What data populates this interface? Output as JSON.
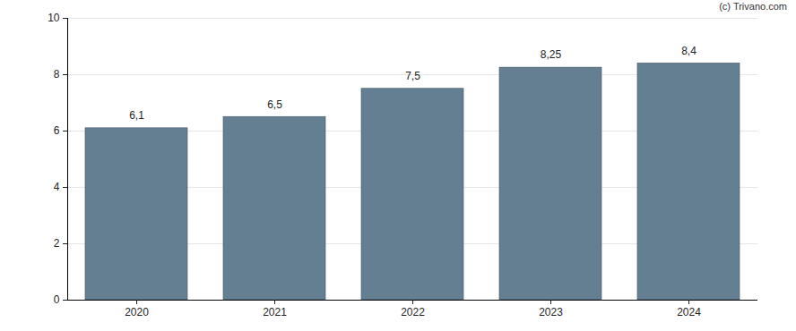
{
  "chart_data": {
    "type": "bar",
    "source": "(c) Trivano.com",
    "categories": [
      "2020",
      "2021",
      "2022",
      "2023",
      "2024"
    ],
    "values": [
      6.1,
      6.5,
      7.5,
      8.25,
      8.4
    ],
    "value_labels": [
      "6,1",
      "6,5",
      "7,5",
      "8,25",
      "8,4"
    ],
    "data_labels": true,
    "color": "#647f91",
    "ylim": [
      0,
      10
    ],
    "yticks": [
      0,
      2,
      4,
      6,
      8,
      10
    ],
    "grid": true
  }
}
